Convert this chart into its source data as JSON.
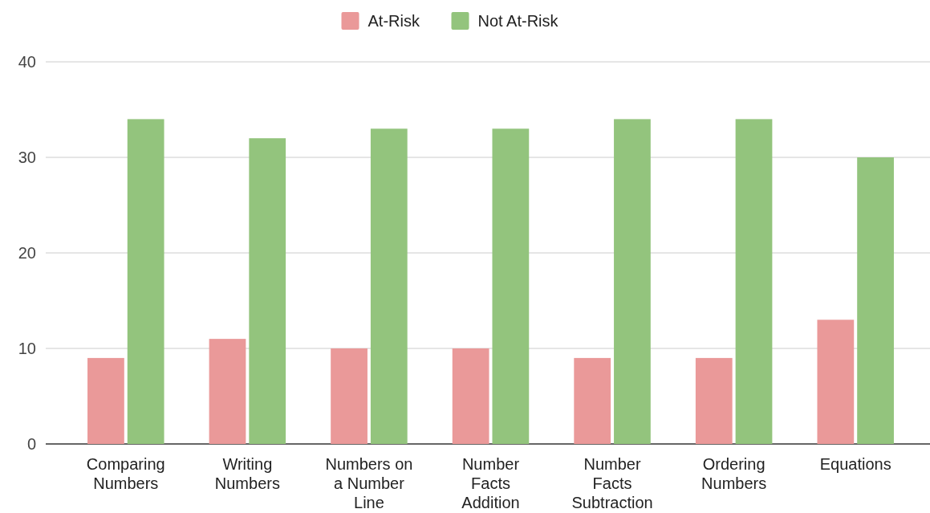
{
  "chart_data": {
    "type": "bar",
    "categories": [
      "Comparing Numbers",
      "Writing Numbers",
      "Numbers on a Number Line",
      "Number Facts Addition",
      "Number Facts Subtraction",
      "Ordering Numbers",
      "Equations"
    ],
    "series": [
      {
        "name": "At-Risk",
        "color": "#ea9999",
        "values": [
          9,
          11,
          10,
          10,
          9,
          9,
          13
        ]
      },
      {
        "name": "Not At-Risk",
        "color": "#93c47d",
        "values": [
          34,
          32,
          33,
          33,
          34,
          34,
          30
        ]
      }
    ],
    "ylim": [
      0,
      40
    ],
    "yticks": [
      0,
      10,
      20,
      30,
      40
    ],
    "grid": "y",
    "legend": "top"
  }
}
